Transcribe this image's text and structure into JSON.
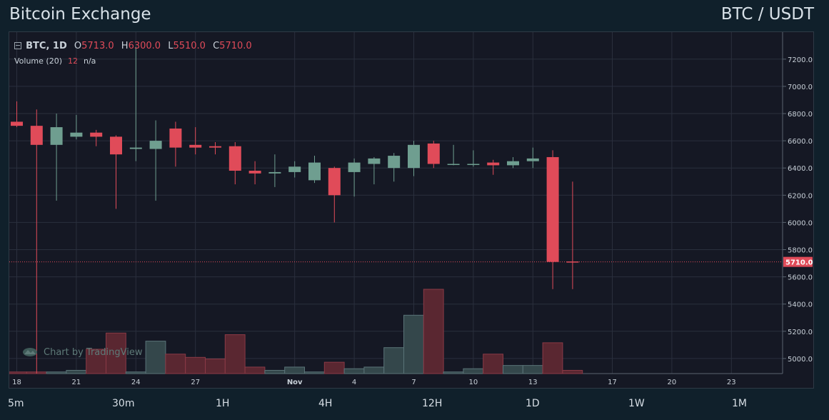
{
  "header": {
    "title": "Bitcoin Exchange",
    "pair": "BTC / USDT"
  },
  "legend": {
    "symbol": "BTC, 1D",
    "o_label": "O",
    "o_value": "5713.0",
    "h_label": "H",
    "h_value": "6300.0",
    "l_label": "L",
    "l_value": "5510.0",
    "c_label": "C",
    "c_value": "5710.0",
    "volume_label": "Volume (20)",
    "volume_value": "12",
    "volume_ma": "n/a"
  },
  "watermark": "Chart by TradingView",
  "timeframes": [
    "5m",
    "30m",
    "1H",
    "4H",
    "12H",
    "1D",
    "1W",
    "1M"
  ],
  "colors": {
    "up": "#6f9e90",
    "down": "#e04b59",
    "grid": "#2a2f3d",
    "background": "#151824"
  },
  "chart_data": {
    "type": "candlestick",
    "interval": "1D",
    "x_ticks": [
      "18",
      "21",
      "24",
      "27",
      "Nov",
      "4",
      "7",
      "10",
      "13",
      "17",
      "20",
      "23"
    ],
    "y_ticks": [
      "7200.0",
      "7000.0",
      "6800.0",
      "6600.0",
      "6400.0",
      "6200.0",
      "6000.0",
      "5800.0",
      "5600.0",
      "5400.0",
      "5200.0",
      "5000.0"
    ],
    "ylim": [
      4880,
      7290
    ],
    "last_price": "5710.0",
    "candles": [
      {
        "date": "Oct 18",
        "o": 6740,
        "h": 6890,
        "l": 6700,
        "c": 6710
      },
      {
        "date": "Oct 19",
        "o": 6710,
        "h": 6830,
        "l": 4880,
        "c": 6570
      },
      {
        "date": "Oct 20",
        "o": 6570,
        "h": 6800,
        "l": 6160,
        "c": 6700
      },
      {
        "date": "Oct 21",
        "o": 6630,
        "h": 6790,
        "l": 6610,
        "c": 6660
      },
      {
        "date": "Oct 22",
        "o": 6660,
        "h": 6680,
        "l": 6560,
        "c": 6630
      },
      {
        "date": "Oct 23",
        "o": 6630,
        "h": 6640,
        "l": 6100,
        "c": 6500
      },
      {
        "date": "Oct 24",
        "o": 6540,
        "h": 7290,
        "l": 6450,
        "c": 6550
      },
      {
        "date": "Oct 25",
        "o": 6540,
        "h": 6750,
        "l": 6160,
        "c": 6600
      },
      {
        "date": "Oct 26",
        "o": 6690,
        "h": 6740,
        "l": 6410,
        "c": 6550
      },
      {
        "date": "Oct 27",
        "o": 6570,
        "h": 6700,
        "l": 6500,
        "c": 6550
      },
      {
        "date": "Oct 28",
        "o": 6560,
        "h": 6590,
        "l": 6500,
        "c": 6550
      },
      {
        "date": "Oct 29",
        "o": 6560,
        "h": 6590,
        "l": 6280,
        "c": 6380
      },
      {
        "date": "Oct 30",
        "o": 6380,
        "h": 6450,
        "l": 6280,
        "c": 6360
      },
      {
        "date": "Oct 31",
        "o": 6360,
        "h": 6500,
        "l": 6260,
        "c": 6370
      },
      {
        "date": "Nov 1",
        "o": 6370,
        "h": 6450,
        "l": 6330,
        "c": 6410
      },
      {
        "date": "Nov 2",
        "o": 6310,
        "h": 6490,
        "l": 6290,
        "c": 6440
      },
      {
        "date": "Nov 3",
        "o": 6400,
        "h": 6410,
        "l": 6000,
        "c": 6200
      },
      {
        "date": "Nov 4",
        "o": 6370,
        "h": 6470,
        "l": 6190,
        "c": 6440
      },
      {
        "date": "Nov 5",
        "o": 6430,
        "h": 6480,
        "l": 6280,
        "c": 6470
      },
      {
        "date": "Nov 6",
        "o": 6400,
        "h": 6510,
        "l": 6300,
        "c": 6490
      },
      {
        "date": "Nov 7",
        "o": 6400,
        "h": 6600,
        "l": 6340,
        "c": 6570
      },
      {
        "date": "Nov 8",
        "o": 6580,
        "h": 6600,
        "l": 6400,
        "c": 6430
      },
      {
        "date": "Nov 9",
        "o": 6430,
        "h": 6570,
        "l": 6420,
        "c": 6430
      },
      {
        "date": "Nov 10",
        "o": 6430,
        "h": 6530,
        "l": 6410,
        "c": 6430
      },
      {
        "date": "Nov 11",
        "o": 6440,
        "h": 6460,
        "l": 6350,
        "c": 6420
      },
      {
        "date": "Nov 12",
        "o": 6420,
        "h": 6480,
        "l": 6400,
        "c": 6450
      },
      {
        "date": "Nov 13",
        "o": 6450,
        "h": 6550,
        "l": 6400,
        "c": 6470
      },
      {
        "date": "Nov 14",
        "o": 6480,
        "h": 6530,
        "l": 5510,
        "c": 5710
      },
      {
        "date": "Nov 15",
        "o": 5713,
        "h": 6300,
        "l": 5510,
        "c": 5710
      }
    ],
    "volume": [
      1,
      1,
      1,
      2,
      15,
      25,
      1,
      20,
      12,
      10,
      9,
      24,
      4,
      2,
      4,
      1,
      7,
      3,
      4,
      16,
      36,
      52,
      1,
      3,
      12,
      5,
      5,
      19,
      2
    ]
  }
}
